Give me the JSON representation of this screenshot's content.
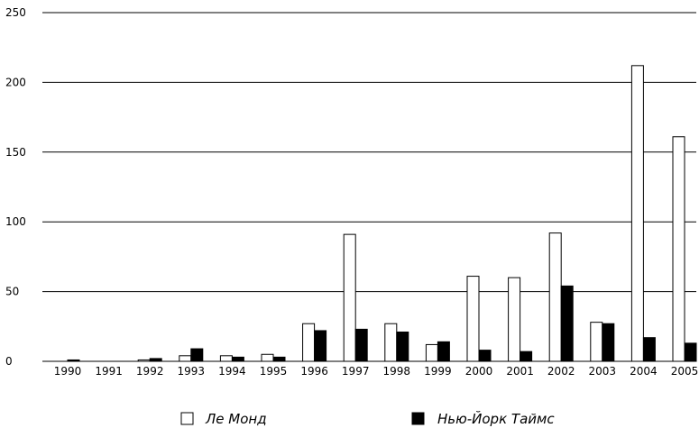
{
  "chart_data": {
    "type": "bar",
    "title": "",
    "xlabel": "",
    "ylabel": "",
    "ylim": [
      0,
      250
    ],
    "yticks": [
      0,
      50,
      100,
      150,
      200,
      250
    ],
    "grid": true,
    "legend_position": "bottom",
    "categories": [
      "1990",
      "1991",
      "1992",
      "1993",
      "1994",
      "1995",
      "1996",
      "1997",
      "1998",
      "1999",
      "2000",
      "2001",
      "2002",
      "2003",
      "2004",
      "2005"
    ],
    "series": [
      {
        "name": "Ле Монд",
        "color": "#ffffff",
        "values": [
          0,
          0,
          1,
          4,
          4,
          5,
          27,
          91,
          27,
          12,
          61,
          60,
          92,
          28,
          212,
          161
        ]
      },
      {
        "name": "Нью-Йорк Таймс",
        "color": "#000000",
        "values": [
          1,
          0,
          2,
          9,
          3,
          3,
          22,
          23,
          21,
          14,
          8,
          7,
          54,
          27,
          17,
          13
        ]
      }
    ]
  }
}
